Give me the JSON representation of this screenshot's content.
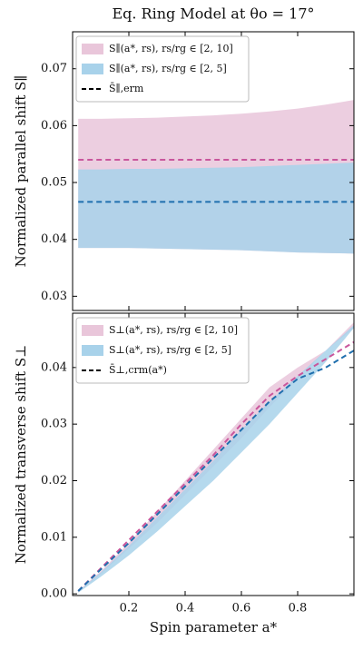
{
  "chart_data": [
    {
      "type": "band",
      "title": "Eq. Ring Model at θo = 17°",
      "ylabel": "Normalized parallel shift S∥",
      "x": [
        0.02,
        0.1,
        0.2,
        0.3,
        0.4,
        0.5,
        0.6,
        0.7,
        0.8,
        0.9,
        1.0
      ],
      "xlim": [
        0,
        1
      ],
      "xticks": [
        0.2,
        0.4,
        0.6,
        0.8
      ],
      "xtick_labels": false,
      "ylim": [
        0.0275,
        0.0765
      ],
      "yticks": [
        0.03,
        0.04,
        0.05,
        0.06,
        0.07
      ],
      "bands": [
        {
          "name": "S∥(a*, rs),  rs/rg ∈ [2, 10]",
          "color": "#e9c6da",
          "upper": [
            0.0612,
            0.0612,
            0.0613,
            0.0614,
            0.0616,
            0.0618,
            0.0621,
            0.0625,
            0.063,
            0.0637,
            0.0645
          ],
          "lower": [
            0.0385,
            0.0385,
            0.0385,
            0.0384,
            0.0383,
            0.0382,
            0.0381,
            0.0379,
            0.0377,
            0.0376,
            0.0375
          ]
        },
        {
          "name": "S∥(a*, rs),  rs/rg ∈ [2, 5]",
          "color": "#a8d2ea",
          "upper": [
            0.0523,
            0.0523,
            0.0524,
            0.0524,
            0.0525,
            0.0526,
            0.0527,
            0.0529,
            0.0531,
            0.0533,
            0.0535
          ],
          "lower": [
            0.0385,
            0.0385,
            0.0385,
            0.0384,
            0.0383,
            0.0382,
            0.0381,
            0.0379,
            0.0377,
            0.0376,
            0.0375
          ]
        }
      ],
      "lines": [
        {
          "color": "#c9569c",
          "values": [
            0.054,
            0.054,
            0.054,
            0.054,
            0.054,
            0.054,
            0.054,
            0.054,
            0.054,
            0.054,
            0.054
          ]
        },
        {
          "color": "#1f6fae",
          "values": [
            0.0466,
            0.0466,
            0.0466,
            0.0466,
            0.0466,
            0.0466,
            0.0466,
            0.0466,
            0.0466,
            0.0466,
            0.0466
          ]
        }
      ],
      "line_legend": {
        "label": "S̄∥,erm",
        "color": "#000000"
      }
    },
    {
      "type": "band",
      "ylabel": "Normalized transverse shift S⊥",
      "xlabel": "Spin parameter  a*",
      "x": [
        0.02,
        0.1,
        0.2,
        0.3,
        0.4,
        0.5,
        0.6,
        0.7,
        0.8,
        0.9,
        1.0
      ],
      "xlim": [
        0,
        1
      ],
      "xticks": [
        0.2,
        0.4,
        0.6,
        0.8
      ],
      "xtick_labels": true,
      "ylim": [
        -0.0003,
        0.0496
      ],
      "yticks": [
        {
          "value": 0,
          "label": "0.00"
        },
        0.01,
        0.02,
        0.03,
        0.04
      ],
      "bands": [
        {
          "name": "S⊥(a*, rs),  rs/rg ∈ [2, 10]",
          "color": "#e9c6da",
          "upper": [
            0.0005,
            0.004,
            0.009,
            0.0145,
            0.02,
            0.0255,
            0.031,
            0.0365,
            0.04,
            0.043,
            0.048
          ],
          "lower": [
            0.0003,
            0.0035,
            0.008,
            0.0125,
            0.0175,
            0.0225,
            0.0275,
            0.033,
            0.038,
            0.043,
            0.047
          ]
        },
        {
          "name": "S⊥(a*, rs),  rs/rg ∈ [2, 5]",
          "color": "#a8d2ea",
          "upper": [
            0.0004,
            0.0038,
            0.0085,
            0.0135,
            0.0185,
            0.0235,
            0.029,
            0.034,
            0.0385,
            0.043,
            0.0475
          ],
          "lower": [
            0.0002,
            0.003,
            0.0068,
            0.011,
            0.0155,
            0.02,
            0.025,
            0.03,
            0.0355,
            0.041,
            0.047
          ]
        }
      ],
      "lines": [
        {
          "color": "#c9569c",
          "values": [
            0.0005,
            0.0045,
            0.0095,
            0.0145,
            0.0195,
            0.0245,
            0.03,
            0.035,
            0.0385,
            0.0415,
            0.0445
          ]
        },
        {
          "color": "#1f6fae",
          "values": [
            0.0005,
            0.0043,
            0.009,
            0.014,
            0.019,
            0.024,
            0.029,
            0.034,
            0.038,
            0.04,
            0.043
          ]
        }
      ],
      "line_legend": {
        "label": "S̄⊥,crm(a*)",
        "color": "#000000"
      }
    }
  ]
}
